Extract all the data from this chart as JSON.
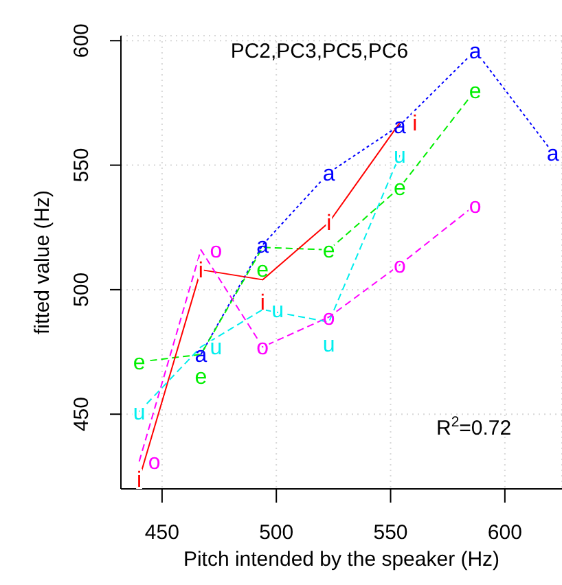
{
  "chart_data": {
    "type": "line",
    "title": "PC2,PC3,PC5,PC6",
    "xlabel": "Pitch intended by the speaker (Hz)",
    "ylabel": "fitted value (Hz)",
    "annotations": [
      "R$^{2}$=0.72"
    ],
    "xlim": [
      432,
      625
    ],
    "xticks": [
      450,
      500,
      550,
      600
    ],
    "ylim": [
      420,
      602
    ],
    "yticks": [
      450,
      500,
      550,
      600
    ],
    "grid": true,
    "series": [
      {
        "name": "a",
        "color": "#0000ff",
        "line_style": "dotted",
        "x": [
          467,
          494,
          523,
          554,
          587,
          621
        ],
        "values": [
          474,
          518,
          547,
          566,
          596,
          555
        ]
      },
      {
        "name": "e",
        "color": "#00ee00",
        "line_style": "dashed",
        "x": [
          440,
          467,
          494,
          523,
          554,
          587
        ],
        "values": [
          471,
          474,
          517,
          516,
          541,
          580
        ]
      },
      {
        "name": "i",
        "color": "#ff0000",
        "line_style": "solid",
        "x": [
          440,
          467,
          494,
          523,
          554
        ],
        "values": [
          424,
          508,
          504,
          527,
          567
        ]
      },
      {
        "name": "o",
        "color": "#ff00ff",
        "line_style": "dashed",
        "x": [
          440,
          467,
          494,
          523,
          554,
          587
        ],
        "values": [
          431,
          516,
          477,
          489,
          510,
          534
        ]
      },
      {
        "name": "u",
        "color": "#00eeee",
        "line_style": "dashed",
        "x": [
          440,
          467,
          494,
          523,
          554
        ],
        "values": [
          451,
          477,
          492,
          487,
          554
        ]
      }
    ]
  }
}
